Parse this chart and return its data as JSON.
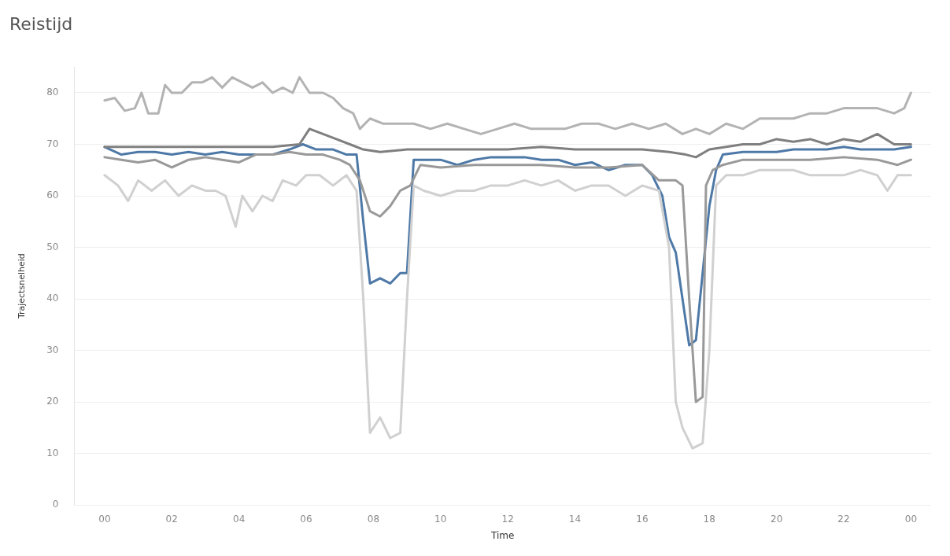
{
  "chart_data": {
    "type": "line",
    "title": "Reistijd",
    "xlabel": "Time",
    "ylabel": "Trajectsnelheid",
    "xlim": [
      -0.9,
      24.6
    ],
    "ylim": [
      0,
      85
    ],
    "xticks": [
      {
        "value": 0,
        "label": "00"
      },
      {
        "value": 2,
        "label": "02"
      },
      {
        "value": 4,
        "label": "04"
      },
      {
        "value": 6,
        "label": "06"
      },
      {
        "value": 8,
        "label": "08"
      },
      {
        "value": 10,
        "label": "10"
      },
      {
        "value": 12,
        "label": "12"
      },
      {
        "value": 14,
        "label": "14"
      },
      {
        "value": 16,
        "label": "16"
      },
      {
        "value": 18,
        "label": "18"
      },
      {
        "value": 20,
        "label": "20"
      },
      {
        "value": 22,
        "label": "22"
      },
      {
        "value": 24,
        "label": "00"
      }
    ],
    "yticks": [
      0,
      10,
      20,
      30,
      40,
      50,
      60,
      70,
      80
    ],
    "grid": "y",
    "legend": false,
    "marker": "none",
    "line_style": "solid",
    "series": [
      {
        "color": "#b3b3b3",
        "x": [
          0,
          0.3,
          0.6,
          0.9,
          1.1,
          1.3,
          1.6,
          1.8,
          2,
          2.3,
          2.6,
          2.9,
          3.2,
          3.5,
          3.8,
          4.1,
          4.4,
          4.7,
          5,
          5.3,
          5.6,
          5.8,
          6.1,
          6.5,
          6.8,
          7.1,
          7.4,
          7.6,
          7.9,
          8.3,
          8.7,
          9.2,
          9.7,
          10.2,
          10.7,
          11.2,
          11.7,
          12.2,
          12.7,
          13.2,
          13.7,
          14.2,
          14.7,
          15.2,
          15.7,
          16.2,
          16.7,
          17.2,
          17.6,
          18,
          18.5,
          19,
          19.5,
          20,
          20.5,
          21,
          21.5,
          22,
          22.5,
          23,
          23.5,
          23.8,
          24
        ],
        "values": [
          78.5,
          79,
          76.5,
          77,
          80,
          76,
          76,
          81.5,
          80,
          80,
          82,
          82,
          83,
          81,
          83,
          82,
          81,
          82,
          80,
          81,
          80,
          83,
          80,
          80,
          79,
          77,
          76,
          73,
          75,
          74,
          74,
          74,
          73,
          74,
          73,
          72,
          73,
          74,
          73,
          73,
          73,
          74,
          74,
          73,
          74,
          73,
          74,
          72,
          73,
          72,
          74,
          73,
          75,
          75,
          75,
          76,
          76,
          77,
          77,
          77,
          76,
          77,
          80
        ]
      },
      {
        "color": "#7f7f7f",
        "x": [
          0,
          1,
          2,
          3,
          4,
          5,
          5.8,
          6.1,
          6.5,
          6.9,
          7.3,
          7.7,
          8.2,
          9,
          10,
          11,
          12,
          13,
          14,
          15,
          16,
          16.8,
          17.3,
          17.6,
          18,
          18.5,
          19,
          19.5,
          20,
          20.5,
          21,
          21.5,
          22,
          22.5,
          23,
          23.5,
          24
        ],
        "values": [
          69.5,
          69.5,
          69.5,
          69.5,
          69.5,
          69.5,
          70,
          73,
          72,
          71,
          70,
          69,
          68.5,
          69,
          69,
          69,
          69,
          69.5,
          69,
          69,
          69,
          68.5,
          68,
          67.5,
          69,
          69.5,
          70,
          70,
          71,
          70.5,
          71,
          70,
          71,
          70.5,
          72,
          70,
          70
        ]
      },
      {
        "color": "#999999",
        "x": [
          0,
          0.5,
          1,
          1.5,
          2,
          2.5,
          3,
          3.5,
          4,
          4.5,
          5,
          5.5,
          6,
          6.5,
          7,
          7.3,
          7.6,
          7.9,
          8.2,
          8.5,
          8.8,
          9.1,
          9.4,
          10,
          11,
          12,
          13,
          14,
          15,
          16,
          16.5,
          17,
          17.2,
          17.4,
          17.6,
          17.8,
          17.9,
          18.1,
          18.4,
          19,
          20,
          21,
          22,
          23,
          23.6,
          24
        ],
        "values": [
          67.5,
          67,
          66.5,
          67,
          65.5,
          67,
          67.5,
          67,
          66.5,
          68,
          68,
          68.5,
          68,
          68,
          67,
          66,
          63,
          57,
          56,
          58,
          61,
          62,
          66,
          65.5,
          66,
          66,
          66,
          65.5,
          65.5,
          66,
          63,
          63,
          62,
          40,
          20,
          21,
          62,
          65,
          66,
          67,
          67,
          67,
          67.5,
          67,
          66,
          67
        ]
      },
      {
        "color": "#d0d0d0",
        "x": [
          0,
          0.4,
          0.7,
          1,
          1.4,
          1.8,
          2.2,
          2.6,
          3,
          3.3,
          3.6,
          3.9,
          4.1,
          4.4,
          4.7,
          5,
          5.3,
          5.7,
          6,
          6.4,
          6.8,
          7.2,
          7.5,
          7.7,
          7.9,
          8.2,
          8.5,
          8.8,
          9,
          9.2,
          9.5,
          10,
          10.5,
          11,
          11.5,
          12,
          12.5,
          13,
          13.5,
          14,
          14.5,
          15,
          15.5,
          16,
          16.5,
          16.8,
          17,
          17.2,
          17.5,
          17.8,
          18,
          18.2,
          18.5,
          19,
          19.5,
          20,
          20.5,
          21,
          21.5,
          22,
          22.5,
          23,
          23.3,
          23.6,
          24
        ],
        "values": [
          64,
          62,
          59,
          63,
          61,
          63,
          60,
          62,
          61,
          61,
          60,
          54,
          60,
          57,
          60,
          59,
          63,
          62,
          64,
          64,
          62,
          64,
          61,
          40,
          14,
          17,
          13,
          14,
          40,
          62,
          61,
          60,
          61,
          61,
          62,
          62,
          63,
          62,
          63,
          61,
          62,
          62,
          60,
          62,
          61,
          50,
          20,
          15,
          11,
          12,
          30,
          62,
          64,
          64,
          65,
          65,
          65,
          64,
          64,
          64,
          65,
          64,
          61,
          64,
          64
        ]
      },
      {
        "color": "#4e79a7",
        "x": [
          0,
          0.5,
          1,
          1.5,
          2,
          2.5,
          3,
          3.5,
          4,
          4.5,
          5,
          5.5,
          5.9,
          6.3,
          6.8,
          7.2,
          7.5,
          7.7,
          7.9,
          8.2,
          8.5,
          8.8,
          9,
          9.2,
          9.5,
          10,
          10.5,
          11,
          11.5,
          12,
          12.5,
          13,
          13.5,
          14,
          14.5,
          15,
          15.5,
          16,
          16.3,
          16.6,
          16.8,
          17,
          17.2,
          17.4,
          17.6,
          17.8,
          18,
          18.2,
          18.4,
          19,
          19.5,
          20,
          20.5,
          21,
          21.5,
          22,
          22.5,
          23,
          23.5,
          24
        ],
        "values": [
          69.5,
          68,
          68.5,
          68.5,
          68,
          68.5,
          68,
          68.5,
          68,
          68,
          68,
          69,
          70,
          69,
          69,
          68,
          68,
          55,
          43,
          44,
          43,
          45,
          45,
          67,
          67,
          67,
          66,
          67,
          67.5,
          67.5,
          67.5,
          67,
          67,
          66,
          66.5,
          65,
          66,
          66,
          64,
          60,
          52,
          49,
          40,
          31,
          32,
          45,
          58,
          65,
          68,
          68.5,
          68.5,
          68.5,
          69,
          69,
          69,
          69.5,
          69,
          69,
          69,
          69.5
        ]
      }
    ]
  }
}
